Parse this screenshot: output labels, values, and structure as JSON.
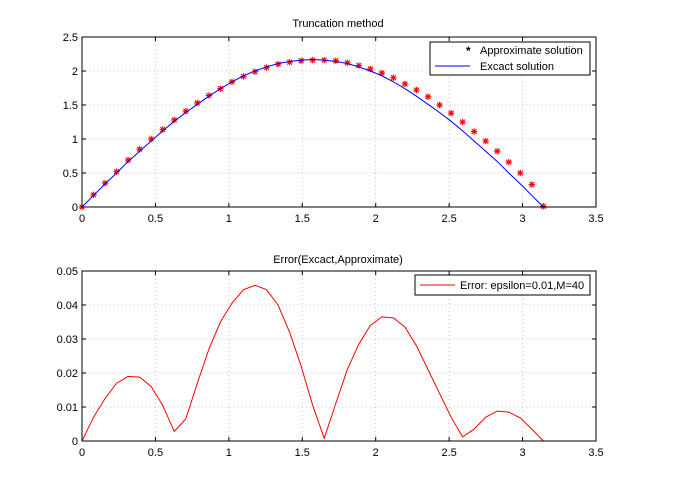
{
  "chart_data": [
    {
      "type": "line",
      "title": "Truncation method",
      "xlabel": "",
      "ylabel": "",
      "xlim": [
        0,
        3.5
      ],
      "ylim": [
        0,
        2.5
      ],
      "xticks": [
        "0",
        "0.5",
        "1",
        "1.5",
        "2",
        "2.5",
        "3",
        "3.5"
      ],
      "yticks": [
        "0",
        "0.5",
        "1",
        "1.5",
        "2",
        "2.5"
      ],
      "grid": true,
      "legend_position": "top-right",
      "legend": [
        "Approximate solution",
        "Excact solution"
      ],
      "series": [
        {
          "name": "Approximate solution",
          "style": "markers-asterisk",
          "color": "#ff0000",
          "x": [
            0,
            0.0785,
            0.157,
            0.2356,
            0.3142,
            0.3927,
            0.4712,
            0.5498,
            0.6283,
            0.7069,
            0.7854,
            0.8639,
            0.9425,
            1.021,
            1.0996,
            1.1781,
            1.2566,
            1.3352,
            1.4137,
            1.4923,
            1.5708,
            1.6493,
            1.7279,
            1.8064,
            1.885,
            1.9635,
            2.042,
            2.1206,
            2.1991,
            2.2777,
            2.3562,
            2.4347,
            2.5133,
            2.5918,
            2.6704,
            2.7489,
            2.8274,
            2.906,
            2.9845,
            3.0631,
            3.1416
          ],
          "y": [
            0,
            0.18,
            0.35,
            0.52,
            0.69,
            0.85,
            1.0,
            1.14,
            1.28,
            1.41,
            1.53,
            1.64,
            1.74,
            1.84,
            1.92,
            1.99,
            2.05,
            2.1,
            2.13,
            2.15,
            2.16,
            2.16,
            2.15,
            2.12,
            2.08,
            2.03,
            1.97,
            1.9,
            1.81,
            1.72,
            1.62,
            1.5,
            1.38,
            1.25,
            1.11,
            0.97,
            0.82,
            0.66,
            0.5,
            0.33,
            0.01
          ]
        },
        {
          "name": "Excact solution",
          "style": "line",
          "color": "#0000ff",
          "x": [
            0,
            0.0785,
            0.157,
            0.2356,
            0.3142,
            0.3927,
            0.4712,
            0.5498,
            0.6283,
            0.7069,
            0.7854,
            0.8639,
            0.9425,
            1.021,
            1.0996,
            1.1781,
            1.2566,
            1.3352,
            1.4137,
            1.4923,
            1.5708,
            1.6493,
            1.7279,
            1.8064,
            1.885,
            1.9635,
            2.042,
            2.1206,
            2.1991,
            2.2777,
            2.3562,
            2.4347,
            2.5133,
            2.5918,
            2.6704,
            2.7489,
            2.8274,
            2.906,
            2.9845,
            3.0631,
            3.1416
          ],
          "y": [
            0,
            0.17,
            0.34,
            0.5,
            0.67,
            0.82,
            0.97,
            1.12,
            1.26,
            1.39,
            1.51,
            1.63,
            1.74,
            1.84,
            1.93,
            2.0,
            2.06,
            2.11,
            2.14,
            2.16,
            2.17,
            2.16,
            2.14,
            2.11,
            2.06,
            2.0,
            1.93,
            1.84,
            1.74,
            1.63,
            1.51,
            1.39,
            1.26,
            1.12,
            0.97,
            0.82,
            0.67,
            0.5,
            0.34,
            0.17,
            0
          ]
        }
      ]
    },
    {
      "type": "line",
      "title": "Error(Excact,Approximate)",
      "xlabel": "",
      "ylabel": "",
      "xlim": [
        0,
        3.5
      ],
      "ylim": [
        0,
        0.05
      ],
      "xticks": [
        "0",
        "0.5",
        "1",
        "1.5",
        "2",
        "2.5",
        "3",
        "3.5"
      ],
      "yticks": [
        "0",
        "0.01",
        "0.02",
        "0.03",
        "0.04",
        "0.05"
      ],
      "grid": true,
      "legend_position": "top-right",
      "legend": [
        "Error: epsilon=0.01,M=40"
      ],
      "series": [
        {
          "name": "Error: epsilon=0.01,M=40",
          "style": "line",
          "color": "#ff0000",
          "x": [
            0,
            0.0785,
            0.157,
            0.2356,
            0.3142,
            0.3927,
            0.4712,
            0.5498,
            0.6283,
            0.7069,
            0.7854,
            0.8639,
            0.9425,
            1.021,
            1.0996,
            1.1781,
            1.2566,
            1.3352,
            1.4137,
            1.4923,
            1.5708,
            1.6493,
            1.7279,
            1.8064,
            1.885,
            1.9635,
            2.042,
            2.1206,
            2.1991,
            2.2777,
            2.3562,
            2.4347,
            2.5133,
            2.5918,
            2.6704,
            2.7489,
            2.8274,
            2.906,
            2.9845,
            3.0631,
            3.1416
          ],
          "y": [
            0,
            0.007,
            0.0125,
            0.017,
            0.019,
            0.0188,
            0.016,
            0.0105,
            0.0028,
            0.0065,
            0.017,
            0.027,
            0.035,
            0.0405,
            0.0445,
            0.0458,
            0.0445,
            0.04,
            0.032,
            0.022,
            0.0105,
            0.0008,
            0.011,
            0.021,
            0.0285,
            0.034,
            0.0365,
            0.0362,
            0.0335,
            0.028,
            0.021,
            0.014,
            0.007,
            0.0012,
            0.0035,
            0.007,
            0.0088,
            0.0085,
            0.0068,
            0.0035,
            0
          ]
        }
      ]
    }
  ]
}
